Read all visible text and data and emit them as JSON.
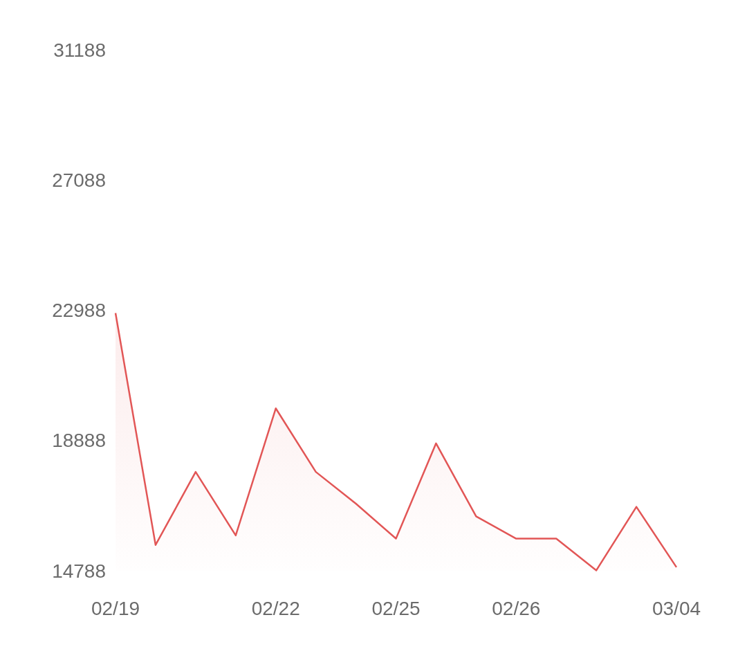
{
  "chart_data": {
    "type": "area",
    "categories": [
      "02/19",
      null,
      null,
      null,
      "02/22",
      null,
      null,
      "02/25",
      null,
      null,
      "02/26",
      null,
      null,
      null,
      "03/04"
    ],
    "series": [
      {
        "color": "#e25656",
        "values": [
          22900,
          15600,
          17900,
          15900,
          19900,
          17900,
          16900,
          15800,
          18800,
          16500,
          15800,
          15800,
          14800,
          16800,
          14900
        ]
      }
    ],
    "ylim": [
      14788,
      31188
    ],
    "yticks": [
      14788,
      18888,
      22988,
      27088,
      31188
    ],
    "grid": false,
    "marker": "none",
    "line_style": "solid"
  }
}
